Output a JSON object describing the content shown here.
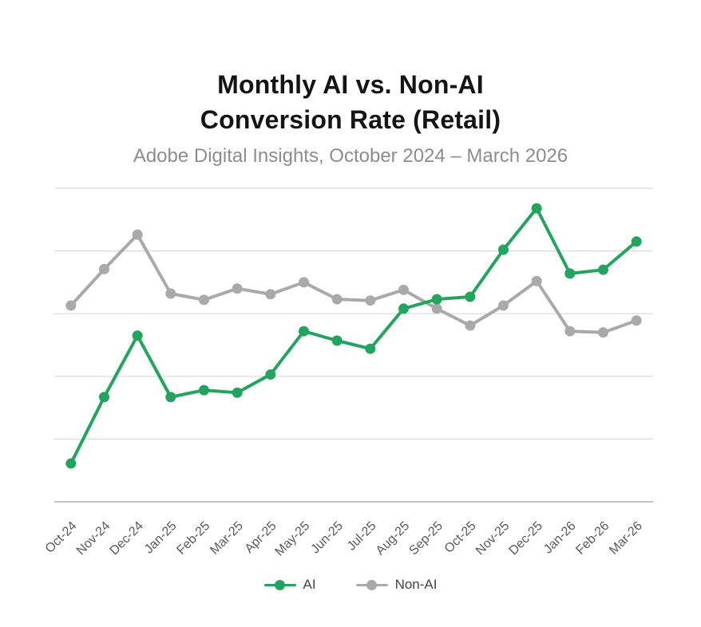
{
  "header": {
    "title_line1": "Monthly AI vs. Non-AI",
    "title_line2": "Conversion Rate (Retail)",
    "subtitle": "Adobe Digital Insights, October 2024 – March 2026"
  },
  "colors": {
    "background": "#ffffff",
    "title_text": "#141414",
    "subtitle_text": "#8c8c8c",
    "gridline": "#d9d9d9",
    "axis_line": "#c4c4c4",
    "tick_label": "#595959",
    "legend_text": "#404040",
    "ai_green": "#23a45e",
    "non_ai_gray": "#a9a9a9"
  },
  "legend": {
    "items": [
      {
        "label": "AI",
        "marker": "line-dot-marker",
        "color": "#23a45e"
      },
      {
        "label": "Non-AI",
        "marker": "line-dot-marker",
        "color": "#a9a9a9"
      }
    ],
    "position": "bottom-center"
  },
  "chart_data": {
    "type": "line",
    "title": "Monthly AI vs. Non-AI Conversion Rate (Retail)",
    "subtitle": "Adobe Digital Insights, October 2024 – March 2026",
    "categories": [
      "Oct-24",
      "Nov-24",
      "Dec-24",
      "Jan-25",
      "Feb-25",
      "Mar-25",
      "Apr-25",
      "May-25",
      "Jun-25",
      "Jul-25",
      "Aug-25",
      "Sep-25",
      "Oct-25",
      "Nov-25",
      "Dec-25",
      "Jan-26",
      "Feb-26",
      "Mar-26"
    ],
    "series": [
      {
        "name": "AI",
        "color": "#23a45e",
        "values": [
          0.61,
          1.67,
          2.65,
          1.67,
          1.78,
          1.74,
          2.03,
          2.72,
          2.57,
          2.44,
          3.08,
          3.23,
          3.27,
          4.02,
          4.68,
          3.64,
          3.7,
          4.15
        ]
      },
      {
        "name": "Non-AI",
        "color": "#a9a9a9",
        "values": [
          3.13,
          3.71,
          4.26,
          3.32,
          3.22,
          3.4,
          3.31,
          3.5,
          3.23,
          3.21,
          3.38,
          3.08,
          2.81,
          3.13,
          3.52,
          2.72,
          2.7,
          2.89
        ]
      }
    ],
    "ylim": [
      0,
      5
    ],
    "yticks": [
      1,
      2,
      3,
      4,
      5
    ],
    "y_axis_labels_visible": false,
    "grid": "horizontal",
    "xlabel": "",
    "ylabel": "",
    "x_tick_rotation": -45,
    "legend_position": "bottom"
  }
}
